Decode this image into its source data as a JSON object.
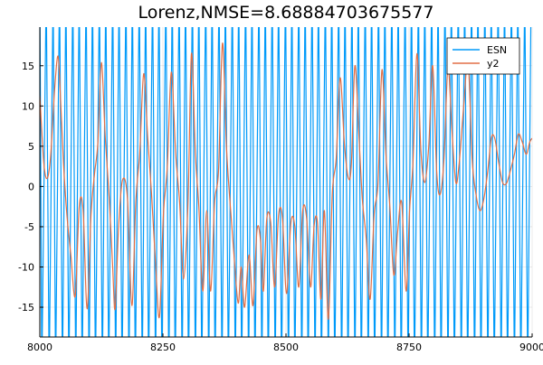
{
  "chart_data": {
    "type": "line",
    "title": "Lorenz,NMSE=8.68884703675577",
    "xlabel": "",
    "ylabel": "",
    "xlim": [
      8000,
      9000
    ],
    "ylim": [
      -18.7,
      19.8
    ],
    "x_ticks": [
      8000,
      8250,
      8500,
      8750,
      9000
    ],
    "y_ticks": [
      -15,
      -10,
      -5,
      0,
      5,
      10,
      15
    ],
    "grid": true,
    "legend": {
      "position": "top-right",
      "entries": [
        "ESN",
        "y2"
      ]
    },
    "series": [
      {
        "name": "ESN",
        "color": "#009af9",
        "style": "oscillating between full y-range extremes",
        "crossings_x": [
          8000,
          8004,
          8013,
          8019,
          8027,
          8032,
          8040,
          8046,
          8053,
          8059,
          8067,
          8073,
          8080,
          8086,
          8094,
          8100,
          8107,
          8113,
          8121,
          8127,
          8134,
          8140,
          8148,
          8154,
          8161,
          8167,
          8175,
          8181,
          8188,
          8194,
          8202,
          8208,
          8215,
          8221,
          8229,
          8235,
          8242,
          8248,
          8256,
          8262,
          8269,
          8275,
          8283,
          8289,
          8296,
          8302,
          8310,
          8316,
          8323,
          8329,
          8337,
          8343,
          8350,
          8356,
          8364,
          8370,
          8377,
          8383,
          8391,
          8397,
          8404,
          8410,
          8418,
          8424,
          8431,
          8437,
          8445,
          8451,
          8458,
          8464,
          8472,
          8478,
          8485,
          8491,
          8499,
          8505,
          8512,
          8518,
          8526,
          8532,
          8539,
          8545,
          8553,
          8559,
          8566,
          8572,
          8580,
          8586,
          8593,
          8599,
          8607,
          8613,
          8620,
          8626,
          8634,
          8640,
          8647,
          8653,
          8661,
          8667,
          8674,
          8680,
          8688,
          8694,
          8701,
          8707,
          8715,
          8721,
          8728,
          8734,
          8742,
          8748,
          8755,
          8761,
          8769,
          8775,
          8782,
          8788,
          8796,
          8802,
          8809,
          8815,
          8823,
          8829,
          8836,
          8842,
          8850,
          8856,
          8863,
          8869,
          8877,
          8883,
          8890,
          8896,
          8904,
          8910,
          8917,
          8923,
          8931,
          8937,
          8944,
          8950,
          8958,
          8964,
          8971,
          8977,
          8985,
          8991,
          8998
        ]
      },
      {
        "name": "y2",
        "color": "#e26f46",
        "x": [
          8000,
          8008,
          8015,
          8022,
          8030,
          8037,
          8042,
          8048,
          8055,
          8063,
          8072,
          8080,
          8088,
          8096,
          8104,
          8111,
          8118,
          8125,
          8133,
          8141,
          8148,
          8153,
          8160,
          8168,
          8178,
          8187,
          8195,
          8203,
          8211,
          8219,
          8227,
          8235,
          8243,
          8251,
          8259,
          8267,
          8276,
          8284,
          8292,
          8301,
          8308,
          8316,
          8323,
          8331,
          8339,
          8347,
          8355,
          8363,
          8371,
          8379,
          8387,
          8395,
          8403,
          8409,
          8416,
          8425,
          8433,
          8441,
          8448,
          8454,
          8461,
          8469,
          8477,
          8485,
          8493,
          8501,
          8510,
          8518,
          8526,
          8534,
          8542,
          8550,
          8557,
          8564,
          8571,
          8578,
          8586,
          8594,
          8602,
          8610,
          8619,
          8627,
          8633,
          8640,
          8648,
          8655,
          8663,
          8671,
          8679,
          8687,
          8695,
          8703,
          8711,
          8719,
          8727,
          8735,
          8744,
          8751,
          8758,
          8766,
          8774,
          8782,
          8790,
          8798,
          8806,
          8813,
          8821,
          8829,
          8837,
          8845,
          8852,
          8861,
          8870,
          8878,
          8886,
          8894,
          8902,
          8910,
          8917,
          8924,
          8932,
          8940,
          8948,
          8956,
          8964,
          8972,
          8980,
          8988,
          8995,
          9000
        ],
        "y": [
          11.3,
          3.0,
          1.0,
          3.8,
          12.0,
          16.2,
          11.0,
          3.0,
          -3.5,
          -8.5,
          -13.6,
          -2.5,
          -3.0,
          -15.2,
          -3.5,
          1.5,
          5.5,
          15.4,
          6.0,
          -1.5,
          -10.0,
          -15.2,
          -5.0,
          0.8,
          -1.5,
          -14.8,
          -1.8,
          4.2,
          14.0,
          6.2,
          -1.0,
          -9.5,
          -16.2,
          -3.5,
          2.5,
          14.2,
          4.0,
          -2.0,
          -11.5,
          -2.0,
          16.5,
          4.0,
          -2.5,
          -13.0,
          -3.0,
          -13.0,
          -2.0,
          2.0,
          17.8,
          5.0,
          -2.5,
          -9.0,
          -14.5,
          -10.0,
          -15.0,
          -8.5,
          -14.8,
          -5.5,
          -6.5,
          -13.0,
          -4.0,
          -4.5,
          -12.5,
          -3.5,
          -4.0,
          -13.3,
          -4.5,
          -5.0,
          -12.5,
          -3.0,
          -4.0,
          -12.5,
          -5.0,
          -4.5,
          -14.0,
          -3.0,
          -16.5,
          -1.0,
          3.5,
          13.5,
          5.0,
          1.0,
          3.0,
          15.0,
          6.5,
          -1.5,
          -6.5,
          -14.0,
          -3.5,
          0.5,
          14.5,
          4.0,
          -2.5,
          -11.0,
          -5.5,
          -2.0,
          -13.0,
          -3.0,
          3.0,
          16.5,
          4.5,
          0.5,
          5.0,
          15.0,
          2.0,
          -1.0,
          3.5,
          14.8,
          7.0,
          0.5,
          3.0,
          10.0,
          15.5,
          3.5,
          -1.0,
          -3.0,
          -1.5,
          2.0,
          6.0,
          6.0,
          3.0,
          0.5,
          0.4,
          2.0,
          4.0,
          6.5,
          5.5,
          4.0,
          5.5,
          6.0
        ]
      }
    ]
  }
}
